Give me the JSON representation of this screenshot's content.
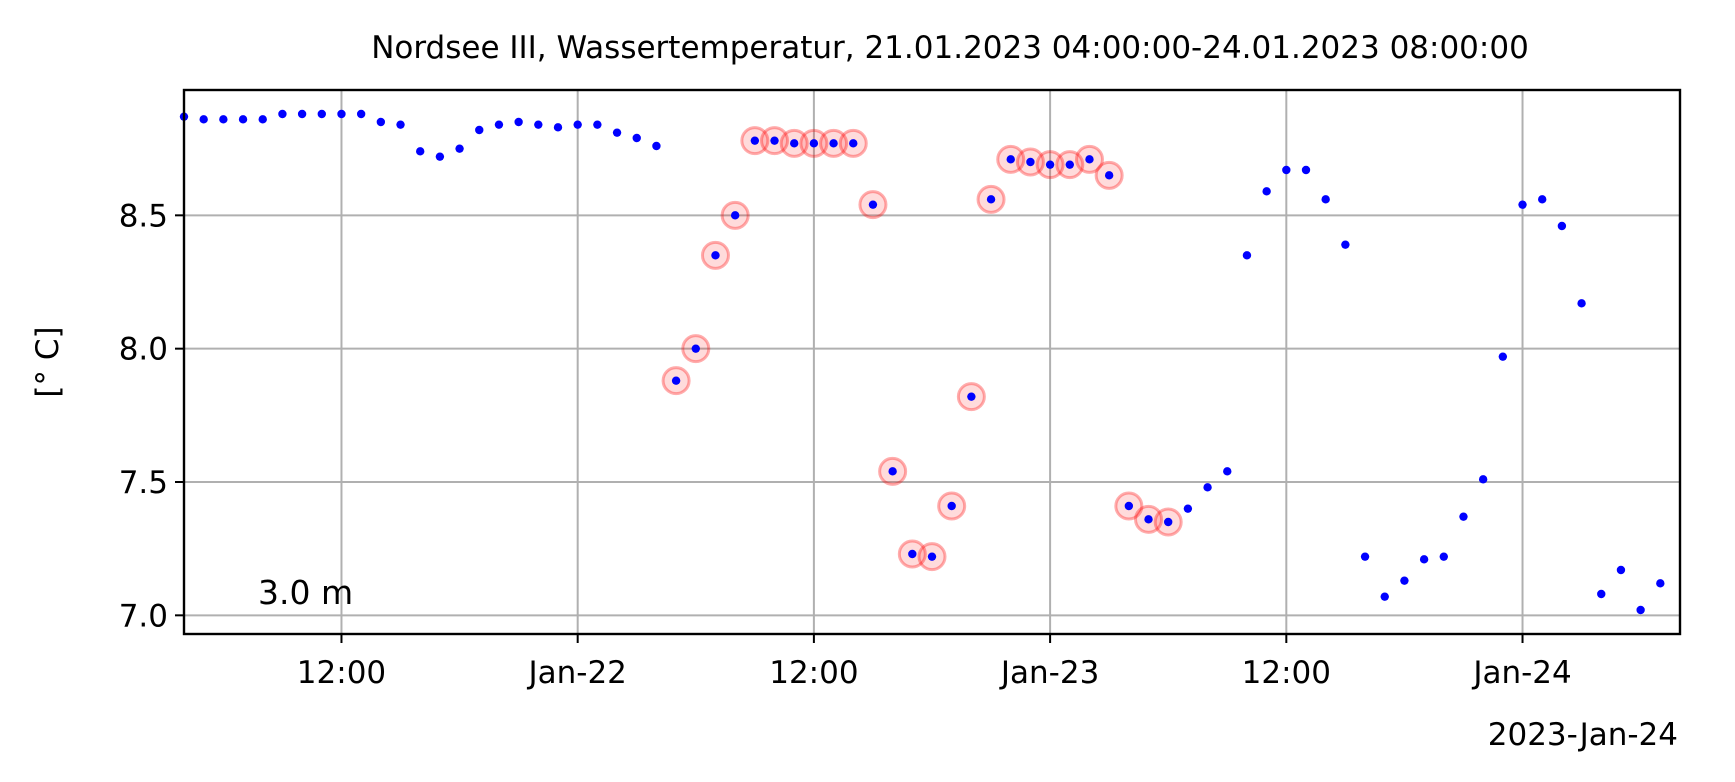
{
  "chart_data": {
    "type": "scatter",
    "title": "Nordsee III, Wassertemperatur, 21.01.2023 04:00:00-24.01.2023 08:00:00",
    "xlabel": "",
    "ylabel": "[° C]",
    "x_range": [
      "2023-01-21 04:00",
      "2023-01-24 08:00"
    ],
    "ylim": [
      6.93,
      8.97
    ],
    "grid": true,
    "legend": "none",
    "x_ticks": [
      {
        "x": "2023-01-21 12:00",
        "label": "12:00"
      },
      {
        "x": "2023-01-22 00:00",
        "label": "Jan-22"
      },
      {
        "x": "2023-01-22 12:00",
        "label": "12:00"
      },
      {
        "x": "2023-01-23 00:00",
        "label": "Jan-23"
      },
      {
        "x": "2023-01-23 12:00",
        "label": "12:00"
      },
      {
        "x": "2023-01-24 00:00",
        "label": "Jan-24"
      }
    ],
    "x_offset_label": "2023-Jan-24",
    "y_ticks": [
      {
        "y": 7.0,
        "label": "7.0"
      },
      {
        "y": 7.5,
        "label": "7.5"
      },
      {
        "y": 8.0,
        "label": "8.0"
      },
      {
        "y": 8.5,
        "label": "8.5"
      }
    ],
    "annotation": "3.0 m",
    "point_color": "#0000ff",
    "flag_color": "#ff0000",
    "series": [
      {
        "points": [
          {
            "x": "2023-01-21 04:00",
            "y": 8.87
          },
          {
            "x": "2023-01-21 05:00",
            "y": 8.86
          },
          {
            "x": "2023-01-21 06:00",
            "y": 8.86
          },
          {
            "x": "2023-01-21 07:00",
            "y": 8.86
          },
          {
            "x": "2023-01-21 08:00",
            "y": 8.86
          },
          {
            "x": "2023-01-21 09:00",
            "y": 8.88
          },
          {
            "x": "2023-01-21 10:00",
            "y": 8.88
          },
          {
            "x": "2023-01-21 11:00",
            "y": 8.88
          },
          {
            "x": "2023-01-21 12:00",
            "y": 8.88
          },
          {
            "x": "2023-01-21 13:00",
            "y": 8.88
          },
          {
            "x": "2023-01-21 14:00",
            "y": 8.85
          },
          {
            "x": "2023-01-21 15:00",
            "y": 8.84
          },
          {
            "x": "2023-01-21 16:00",
            "y": 8.74
          },
          {
            "x": "2023-01-21 17:00",
            "y": 8.72
          },
          {
            "x": "2023-01-21 18:00",
            "y": 8.75
          },
          {
            "x": "2023-01-21 19:00",
            "y": 8.82
          },
          {
            "x": "2023-01-21 20:00",
            "y": 8.84
          },
          {
            "x": "2023-01-21 21:00",
            "y": 8.85
          },
          {
            "x": "2023-01-21 22:00",
            "y": 8.84
          },
          {
            "x": "2023-01-21 23:00",
            "y": 8.83
          },
          {
            "x": "2023-01-22 00:00",
            "y": 8.84
          },
          {
            "x": "2023-01-22 01:00",
            "y": 8.84
          },
          {
            "x": "2023-01-22 02:00",
            "y": 8.81
          },
          {
            "x": "2023-01-22 03:00",
            "y": 8.79
          },
          {
            "x": "2023-01-22 04:00",
            "y": 8.76
          },
          {
            "x": "2023-01-22 05:00",
            "y": 7.88,
            "flagged": true
          },
          {
            "x": "2023-01-22 06:00",
            "y": 8.0,
            "flagged": true
          },
          {
            "x": "2023-01-22 07:00",
            "y": 8.35,
            "flagged": true
          },
          {
            "x": "2023-01-22 08:00",
            "y": 8.5,
            "flagged": true
          },
          {
            "x": "2023-01-22 09:00",
            "y": 8.78,
            "flagged": true
          },
          {
            "x": "2023-01-22 10:00",
            "y": 8.78,
            "flagged": true
          },
          {
            "x": "2023-01-22 11:00",
            "y": 8.77,
            "flagged": true
          },
          {
            "x": "2023-01-22 12:00",
            "y": 8.77,
            "flagged": true
          },
          {
            "x": "2023-01-22 13:00",
            "y": 8.77,
            "flagged": true
          },
          {
            "x": "2023-01-22 14:00",
            "y": 8.77,
            "flagged": true
          },
          {
            "x": "2023-01-22 15:00",
            "y": 8.54,
            "flagged": true
          },
          {
            "x": "2023-01-22 16:00",
            "y": 7.54,
            "flagged": true
          },
          {
            "x": "2023-01-22 17:00",
            "y": 7.23,
            "flagged": true
          },
          {
            "x": "2023-01-22 18:00",
            "y": 7.22,
            "flagged": true
          },
          {
            "x": "2023-01-22 19:00",
            "y": 7.41,
            "flagged": true
          },
          {
            "x": "2023-01-22 20:00",
            "y": 7.82,
            "flagged": true
          },
          {
            "x": "2023-01-22 21:00",
            "y": 8.56,
            "flagged": true
          },
          {
            "x": "2023-01-22 22:00",
            "y": 8.71,
            "flagged": true
          },
          {
            "x": "2023-01-22 23:00",
            "y": 8.7,
            "flagged": true
          },
          {
            "x": "2023-01-23 00:00",
            "y": 8.69,
            "flagged": true
          },
          {
            "x": "2023-01-23 01:00",
            "y": 8.69,
            "flagged": true
          },
          {
            "x": "2023-01-23 02:00",
            "y": 8.71,
            "flagged": true
          },
          {
            "x": "2023-01-23 03:00",
            "y": 8.65,
            "flagged": true
          },
          {
            "x": "2023-01-23 04:00",
            "y": 7.41,
            "flagged": true
          },
          {
            "x": "2023-01-23 05:00",
            "y": 7.36,
            "flagged": true
          },
          {
            "x": "2023-01-23 06:00",
            "y": 7.35,
            "flagged": true
          },
          {
            "x": "2023-01-23 07:00",
            "y": 7.4
          },
          {
            "x": "2023-01-23 08:00",
            "y": 7.48
          },
          {
            "x": "2023-01-23 09:00",
            "y": 7.54
          },
          {
            "x": "2023-01-23 10:00",
            "y": 8.35
          },
          {
            "x": "2023-01-23 11:00",
            "y": 8.59
          },
          {
            "x": "2023-01-23 12:00",
            "y": 8.67
          },
          {
            "x": "2023-01-23 13:00",
            "y": 8.67
          },
          {
            "x": "2023-01-23 14:00",
            "y": 8.56
          },
          {
            "x": "2023-01-23 15:00",
            "y": 8.39
          },
          {
            "x": "2023-01-23 16:00",
            "y": 7.22
          },
          {
            "x": "2023-01-23 17:00",
            "y": 7.07
          },
          {
            "x": "2023-01-23 18:00",
            "y": 7.13
          },
          {
            "x": "2023-01-23 19:00",
            "y": 7.21
          },
          {
            "x": "2023-01-23 20:00",
            "y": 7.22
          },
          {
            "x": "2023-01-23 21:00",
            "y": 7.37
          },
          {
            "x": "2023-01-23 22:00",
            "y": 7.51
          },
          {
            "x": "2023-01-23 23:00",
            "y": 7.97
          },
          {
            "x": "2023-01-24 00:00",
            "y": 8.54
          },
          {
            "x": "2023-01-24 01:00",
            "y": 8.56
          },
          {
            "x": "2023-01-24 02:00",
            "y": 8.46
          },
          {
            "x": "2023-01-24 03:00",
            "y": 8.17
          },
          {
            "x": "2023-01-24 04:00",
            "y": 7.08
          },
          {
            "x": "2023-01-24 05:00",
            "y": 7.17
          },
          {
            "x": "2023-01-24 06:00",
            "y": 7.02
          },
          {
            "x": "2023-01-24 07:00",
            "y": 7.12
          }
        ]
      }
    ]
  }
}
